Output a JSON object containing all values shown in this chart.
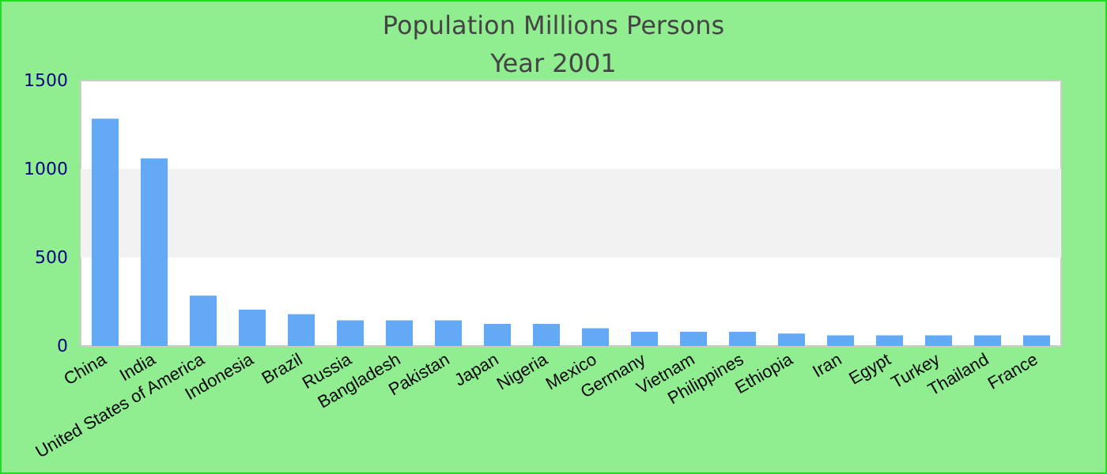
{
  "chart_data": {
    "type": "bar",
    "title": "Population Millions Persons",
    "subtitle": "Year 2001",
    "categories": [
      "China",
      "India",
      "United States of America",
      "Indonesia",
      "Brazil",
      "Russia",
      "Bangladesh",
      "Pakistan",
      "Japan",
      "Nigeria",
      "Mexico",
      "Germany",
      "Vietnam",
      "Philippines",
      "Ethiopia",
      "Iran",
      "Egypt",
      "Turkey",
      "Thailand",
      "France"
    ],
    "values": [
      1285,
      1060,
      285,
      205,
      180,
      145,
      145,
      145,
      125,
      125,
      100,
      80,
      80,
      80,
      70,
      60,
      60,
      60,
      60,
      60
    ],
    "color": "#63a9f5",
    "ylim": [
      0,
      1500
    ],
    "yticks": [
      0,
      500,
      1000,
      1500
    ],
    "grid": false,
    "bands": [
      {
        "axis": "y",
        "from": 500,
        "to": 1000,
        "color": "#f2f2f2"
      }
    ]
  }
}
